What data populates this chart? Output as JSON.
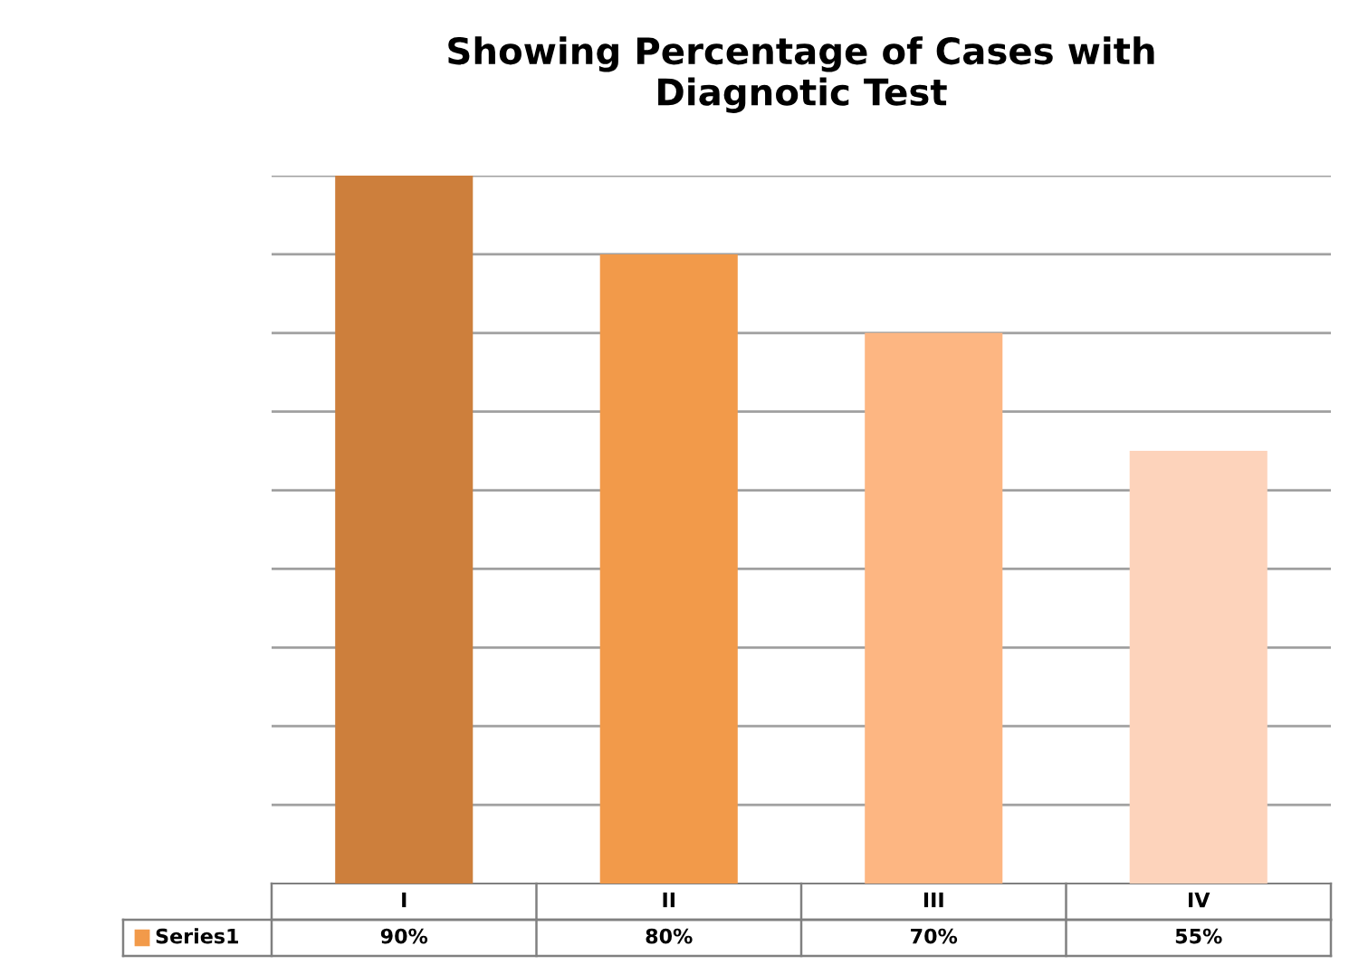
{
  "chart_data": {
    "type": "bar",
    "title": "Showing Percentage of Cases with\nDiagnotic Test",
    "categories": [
      "I",
      "II",
      "III",
      "IV"
    ],
    "series": [
      {
        "name": "Series1",
        "color": "#f29a4a",
        "colors": [
          "#cd7f3c",
          "#f29a4a",
          "#fdb682",
          "#fdd3bb"
        ],
        "values": [
          90,
          80,
          70,
          55
        ],
        "value_labels": [
          "90%",
          "80%",
          "70%",
          "55%"
        ]
      }
    ],
    "ylim": [
      0,
      90
    ],
    "yticks": [
      {
        "value": 10,
        "label": null
      },
      {
        "value": 20,
        "label": null
      },
      {
        "value": 30,
        "label": null
      },
      {
        "value": 40,
        "label": null
      },
      {
        "value": 50,
        "label": null
      },
      {
        "value": 60,
        "label": null
      },
      {
        "value": 70,
        "label": null
      },
      {
        "value": 80,
        "label": null
      },
      {
        "value": 90,
        "label": null
      }
    ],
    "grid": "y",
    "tick_labels": "x"
  }
}
